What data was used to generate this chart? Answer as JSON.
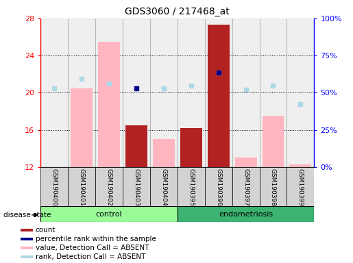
{
  "title": "GDS3060 / 217468_at",
  "samples": [
    "GSM190400",
    "GSM190401",
    "GSM190402",
    "GSM190403",
    "GSM190404",
    "GSM190395",
    "GSM190396",
    "GSM190397",
    "GSM190398",
    "GSM190399"
  ],
  "ylim_left": [
    12,
    28
  ],
  "ylim_right": [
    0,
    100
  ],
  "yticks_left": [
    12,
    16,
    20,
    24,
    28
  ],
  "yticks_right": [
    0,
    25,
    50,
    75,
    100
  ],
  "ytick_labels_right": [
    "0%",
    "25%",
    "50%",
    "75%",
    "100%"
  ],
  "red_bars": [
    null,
    null,
    null,
    16.5,
    null,
    16.2,
    27.3,
    null,
    null,
    null
  ],
  "pink_bars": [
    null,
    20.5,
    25.5,
    null,
    15.0,
    16.2,
    null,
    13.0,
    17.5,
    12.3
  ],
  "blue_squares": [
    null,
    null,
    null,
    20.5,
    null,
    null,
    22.2,
    null,
    null,
    null
  ],
  "light_blue_squares": [
    20.5,
    21.5,
    21.0,
    null,
    20.5,
    20.8,
    22.2,
    20.3,
    20.8,
    18.8
  ],
  "control_color": "#98FB98",
  "endo_color": "#3CB371",
  "disease_state_label": "disease state",
  "control_label": "control",
  "endo_label": "endometriosis",
  "legend_colors": [
    "#B22222",
    "#00008B",
    "#FFB6C1",
    "#ADD8E6"
  ],
  "legend_labels": [
    "count",
    "percentile rank within the sample",
    "value, Detection Call = ABSENT",
    "rank, Detection Call = ABSENT"
  ]
}
